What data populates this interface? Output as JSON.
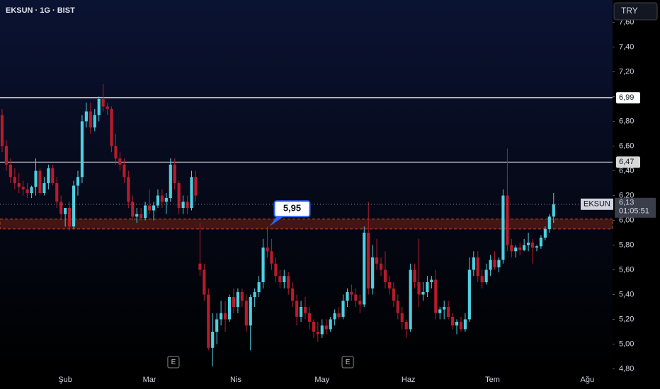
{
  "chart_data": {
    "type": "candlestick",
    "title": "EKSUN · 1G · BIST",
    "currency": "TRY",
    "up_color": "#4dd0e1",
    "down_color": "#b71c2c",
    "ylim": [
      4.78,
      7.78
    ],
    "yticks": [
      {
        "value": 4.8,
        "label": "4,80"
      },
      {
        "value": 5.0,
        "label": "5,00"
      },
      {
        "value": 5.2,
        "label": "5,20"
      },
      {
        "value": 5.4,
        "label": "5,40"
      },
      {
        "value": 5.6,
        "label": "5,60"
      },
      {
        "value": 5.8,
        "label": "5,80"
      },
      {
        "value": 6.0,
        "label": "6,00"
      },
      {
        "value": 6.2,
        "label": "6,20"
      },
      {
        "value": 6.4,
        "label": "6,40"
      },
      {
        "value": 6.6,
        "label": "6,60"
      },
      {
        "value": 6.8,
        "label": "6,80"
      },
      {
        "value": 7.0,
        "label": "7,00"
      },
      {
        "value": 7.2,
        "label": "7,20"
      },
      {
        "value": 7.4,
        "label": "7,40"
      },
      {
        "value": 7.6,
        "label": "7,60"
      }
    ],
    "xlim": [
      -0.5,
      145
    ],
    "xticks": [
      {
        "value": 15,
        "label": "Şub"
      },
      {
        "value": 35,
        "label": "Mar"
      },
      {
        "value": 55.5,
        "label": "Nis"
      },
      {
        "value": 76,
        "label": "May"
      },
      {
        "value": 96.5,
        "label": "Haz"
      },
      {
        "value": 116.5,
        "label": "Tem"
      },
      {
        "value": 139,
        "label": "Ağu"
      }
    ],
    "levels": [
      {
        "value": 6.99,
        "label": "6,99",
        "color": "#ffffff"
      },
      {
        "value": 6.47,
        "label": "6,47",
        "color": "#d8d8d8"
      }
    ],
    "zone": [
      5.93,
      6.01
    ],
    "current": {
      "name": "EKSUN",
      "value": 6.13,
      "label": "6,13",
      "countdown": "01:05:51"
    },
    "callout": {
      "x": 63.5,
      "value": 5.95,
      "label": "5,95"
    },
    "events": [
      {
        "x": 40.7,
        "label": "E"
      },
      {
        "x": 82.1,
        "label": "E"
      }
    ],
    "candles": [
      [
        6.85,
        6.9,
        6.55,
        6.6
      ],
      [
        6.6,
        6.65,
        6.4,
        6.45
      ],
      [
        6.45,
        6.5,
        6.3,
        6.35
      ],
      [
        6.35,
        6.42,
        6.25,
        6.3
      ],
      [
        6.3,
        6.38,
        6.22,
        6.27
      ],
      [
        6.27,
        6.32,
        6.2,
        6.25
      ],
      [
        6.25,
        6.3,
        6.18,
        6.22
      ],
      [
        6.22,
        6.28,
        6.18,
        6.27
      ],
      [
        6.27,
        6.5,
        6.2,
        6.4
      ],
      [
        6.4,
        6.42,
        6.2,
        6.22
      ],
      [
        6.22,
        6.35,
        6.2,
        6.3
      ],
      [
        6.3,
        6.45,
        6.25,
        6.42
      ],
      [
        6.42,
        6.45,
        6.28,
        6.3
      ],
      [
        6.3,
        6.35,
        6.1,
        6.15
      ],
      [
        6.15,
        6.2,
        6.0,
        6.05
      ],
      [
        6.05,
        6.1,
        5.95,
        6.1
      ],
      [
        6.1,
        6.15,
        5.92,
        5.95
      ],
      [
        5.95,
        6.32,
        5.93,
        6.28
      ],
      [
        6.28,
        6.4,
        6.2,
        6.35
      ],
      [
        6.35,
        6.85,
        6.3,
        6.8
      ],
      [
        6.8,
        6.95,
        6.75,
        6.88
      ],
      [
        6.88,
        6.95,
        6.7,
        6.75
      ],
      [
        6.75,
        6.9,
        6.72,
        6.85
      ],
      [
        6.85,
        7.0,
        6.8,
        6.98
      ],
      [
        6.98,
        7.1,
        6.88,
        6.92
      ],
      [
        6.92,
        6.95,
        6.85,
        6.9
      ],
      [
        6.9,
        6.92,
        6.55,
        6.6
      ],
      [
        6.6,
        6.7,
        6.45,
        6.5
      ],
      [
        6.5,
        6.55,
        6.4,
        6.45
      ],
      [
        6.45,
        6.5,
        6.3,
        6.35
      ],
      [
        6.35,
        6.4,
        6.1,
        6.15
      ],
      [
        6.15,
        6.2,
        6.0,
        6.03
      ],
      [
        6.03,
        6.1,
        5.98,
        6.05
      ],
      [
        6.05,
        6.1,
        6.0,
        6.02
      ],
      [
        6.02,
        6.15,
        6.0,
        6.12
      ],
      [
        6.12,
        6.25,
        6.05,
        6.08
      ],
      [
        6.08,
        6.15,
        6.0,
        6.12
      ],
      [
        6.12,
        6.25,
        6.1,
        6.2
      ],
      [
        6.2,
        6.25,
        6.1,
        6.15
      ],
      [
        6.15,
        6.22,
        6.05,
        6.18
      ],
      [
        6.18,
        6.5,
        6.15,
        6.45
      ],
      [
        6.45,
        6.5,
        6.25,
        6.3
      ],
      [
        6.3,
        6.32,
        6.05,
        6.1
      ],
      [
        6.1,
        6.2,
        6.05,
        6.15
      ],
      [
        6.15,
        6.2,
        6.05,
        6.1
      ],
      [
        6.1,
        6.4,
        6.08,
        6.35
      ],
      [
        6.35,
        6.4,
        6.15,
        6.2
      ],
      [
        5.65,
        5.98,
        5.55,
        5.6
      ],
      [
        5.6,
        5.65,
        5.35,
        5.4
      ],
      [
        5.4,
        5.45,
        4.95,
        4.97
      ],
      [
        4.97,
        5.25,
        4.82,
        5.1
      ],
      [
        5.1,
        5.25,
        5.0,
        5.2
      ],
      [
        5.2,
        5.35,
        5.15,
        5.25
      ],
      [
        5.25,
        5.35,
        5.1,
        5.2
      ],
      [
        5.2,
        5.4,
        5.18,
        5.38
      ],
      [
        5.38,
        5.45,
        5.25,
        5.3
      ],
      [
        5.3,
        5.45,
        5.25,
        5.42
      ],
      [
        5.42,
        5.45,
        5.3,
        5.35
      ],
      [
        5.35,
        5.4,
        5.1,
        5.15
      ],
      [
        5.15,
        5.4,
        4.95,
        5.38
      ],
      [
        5.38,
        5.45,
        5.3,
        5.42
      ],
      [
        5.42,
        5.55,
        5.38,
        5.5
      ],
      [
        5.5,
        5.85,
        5.45,
        5.78
      ],
      [
        5.78,
        5.95,
        5.7,
        5.75
      ],
      [
        5.75,
        5.85,
        5.6,
        5.65
      ],
      [
        5.65,
        5.7,
        5.5,
        5.55
      ],
      [
        5.55,
        5.6,
        5.45,
        5.5
      ],
      [
        5.5,
        5.6,
        5.45,
        5.55
      ],
      [
        5.55,
        5.58,
        5.4,
        5.45
      ],
      [
        5.45,
        5.5,
        5.3,
        5.35
      ],
      [
        5.35,
        5.4,
        5.15,
        5.22
      ],
      [
        5.22,
        5.35,
        5.18,
        5.3
      ],
      [
        5.3,
        5.38,
        5.2,
        5.25
      ],
      [
        5.25,
        5.3,
        5.12,
        5.18
      ],
      [
        5.18,
        5.2,
        5.05,
        5.1
      ],
      [
        5.1,
        5.18,
        5.02,
        5.08
      ],
      [
        5.08,
        5.2,
        5.05,
        5.15
      ],
      [
        5.15,
        5.2,
        5.08,
        5.12
      ],
      [
        5.12,
        5.22,
        5.1,
        5.2
      ],
      [
        5.2,
        5.28,
        5.15,
        5.25
      ],
      [
        5.25,
        5.3,
        5.2,
        5.22
      ],
      [
        5.22,
        5.4,
        5.2,
        5.35
      ],
      [
        5.35,
        5.45,
        5.3,
        5.42
      ],
      [
        5.42,
        5.48,
        5.35,
        5.4
      ],
      [
        5.4,
        5.45,
        5.3,
        5.35
      ],
      [
        5.35,
        5.4,
        5.25,
        5.32
      ],
      [
        5.32,
        5.95,
        5.3,
        5.9
      ],
      [
        5.9,
        6.15,
        5.4,
        5.45
      ],
      [
        5.45,
        5.8,
        5.4,
        5.7
      ],
      [
        5.7,
        5.85,
        5.6,
        5.65
      ],
      [
        5.65,
        5.7,
        5.55,
        5.6
      ],
      [
        5.6,
        5.75,
        5.45,
        5.5
      ],
      [
        5.5,
        5.55,
        5.4,
        5.45
      ],
      [
        5.45,
        5.5,
        5.3,
        5.35
      ],
      [
        5.35,
        5.4,
        5.2,
        5.25
      ],
      [
        5.25,
        5.3,
        5.12,
        5.18
      ],
      [
        5.18,
        5.2,
        5.05,
        5.12
      ],
      [
        5.12,
        5.65,
        5.1,
        5.6
      ],
      [
        5.6,
        5.65,
        5.45,
        5.5
      ],
      [
        5.5,
        5.85,
        5.3,
        5.4
      ],
      [
        5.4,
        5.5,
        5.35,
        5.42
      ],
      [
        5.42,
        5.55,
        5.38,
        5.5
      ],
      [
        5.5,
        5.55,
        5.45,
        5.52
      ],
      [
        5.52,
        5.6,
        5.2,
        5.25
      ],
      [
        5.25,
        5.3,
        5.2,
        5.28
      ],
      [
        5.28,
        5.35,
        5.2,
        5.3
      ],
      [
        5.3,
        5.35,
        5.2,
        5.22
      ],
      [
        5.22,
        5.25,
        5.12,
        5.15
      ],
      [
        5.15,
        5.2,
        5.08,
        5.18
      ],
      [
        5.18,
        5.22,
        5.1,
        5.12
      ],
      [
        5.12,
        5.25,
        5.1,
        5.2
      ],
      [
        5.2,
        5.7,
        5.18,
        5.6
      ],
      [
        5.6,
        5.75,
        5.55,
        5.7
      ],
      [
        5.7,
        5.75,
        5.5,
        5.55
      ],
      [
        5.55,
        5.6,
        5.45,
        5.5
      ],
      [
        5.5,
        5.65,
        5.48,
        5.6
      ],
      [
        5.6,
        5.72,
        5.55,
        5.68
      ],
      [
        5.68,
        5.75,
        5.6,
        5.62
      ],
      [
        5.62,
        5.7,
        5.58,
        5.68
      ],
      [
        5.68,
        6.25,
        5.65,
        6.2
      ],
      [
        6.2,
        6.58,
        5.75,
        5.8
      ],
      [
        5.8,
        5.85,
        5.7,
        5.75
      ],
      [
        5.75,
        5.8,
        5.7,
        5.78
      ],
      [
        5.78,
        5.82,
        5.72,
        5.76
      ],
      [
        5.76,
        5.85,
        5.75,
        5.8
      ],
      [
        5.8,
        5.9,
        5.75,
        5.82
      ],
      [
        5.82,
        5.85,
        5.65,
        5.78
      ],
      [
        5.78,
        5.8,
        5.75,
        5.79
      ],
      [
        5.79,
        5.88,
        5.77,
        5.86
      ],
      [
        5.86,
        5.95,
        5.84,
        5.93
      ],
      [
        5.93,
        6.05,
        5.9,
        6.03
      ],
      [
        6.03,
        6.22,
        5.98,
        6.13
      ]
    ]
  }
}
